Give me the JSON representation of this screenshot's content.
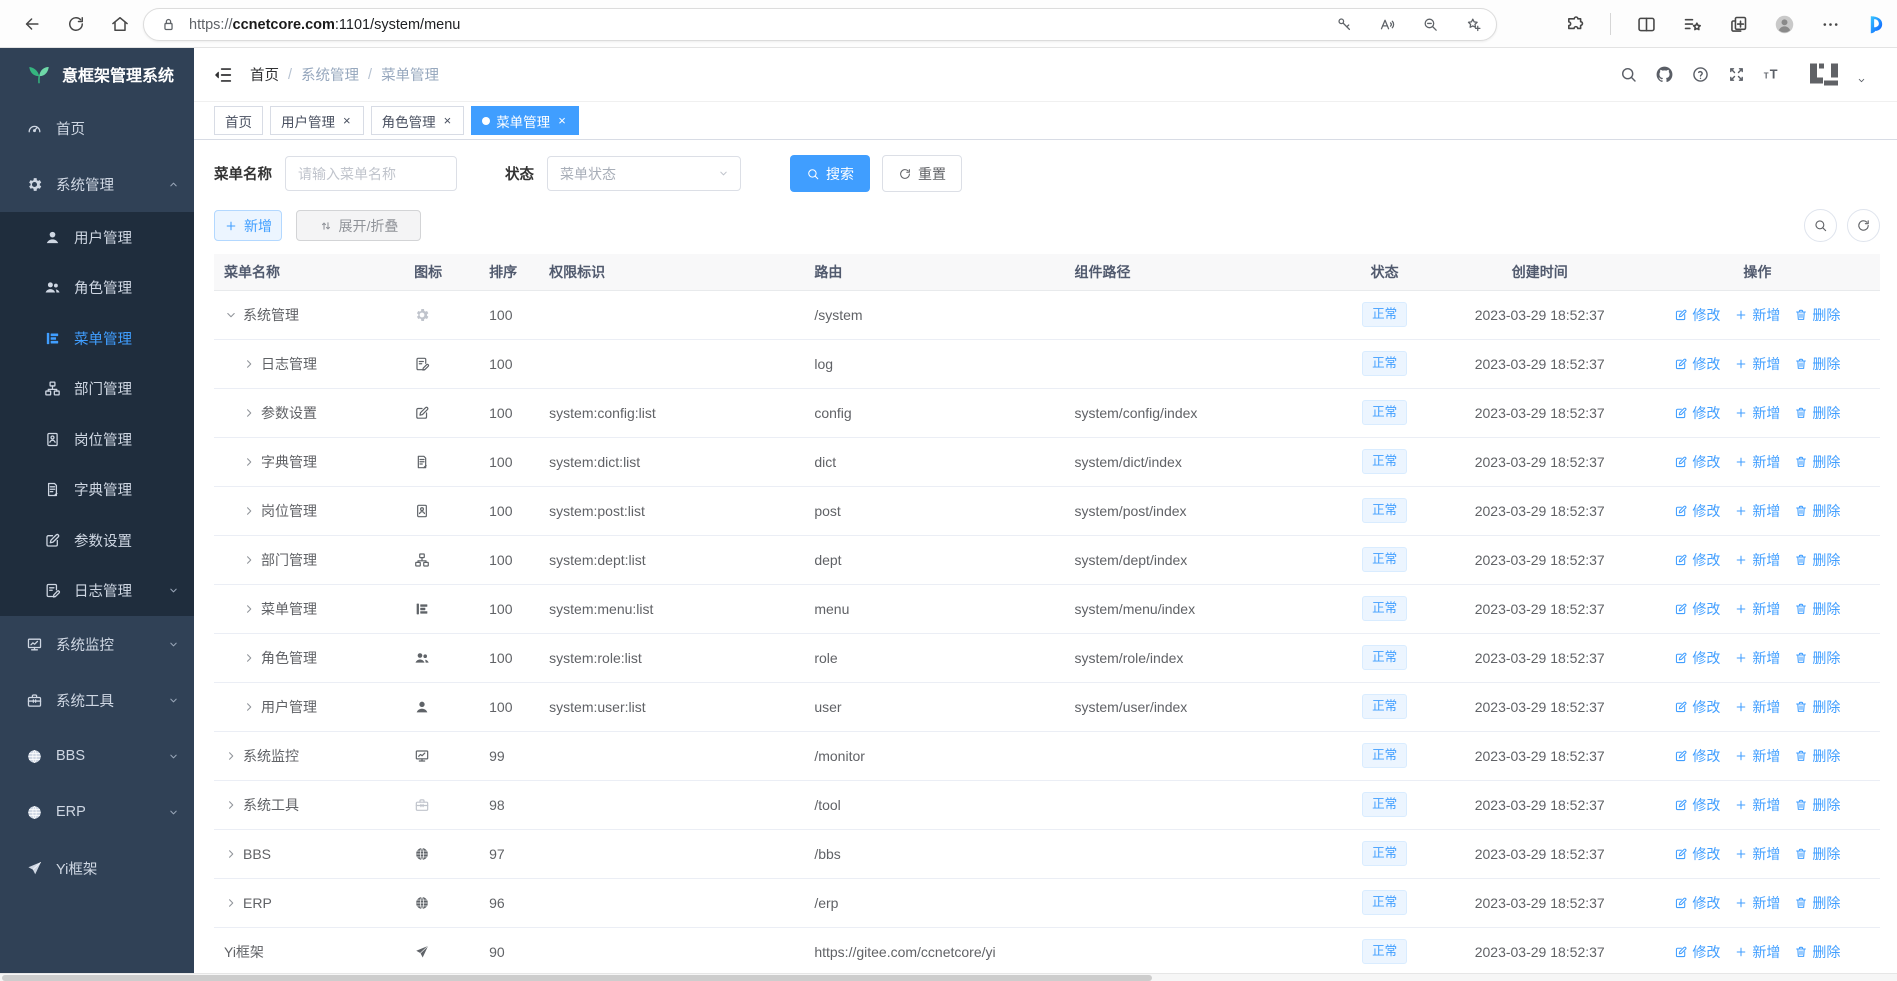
{
  "browser": {
    "url_prefix": "https://",
    "url_domain": "ccnetcore.com",
    "url_suffix": ":1101/system/menu"
  },
  "sidebar": {
    "logo_title": "意框架管理系统",
    "items": [
      {
        "label": "首页",
        "icon": "dashboard-icon",
        "level": 0,
        "chevron": ""
      },
      {
        "label": "系统管理",
        "icon": "gear-icon",
        "level": 0,
        "chevron": "up"
      },
      {
        "label": "用户管理",
        "icon": "user-icon",
        "level": 1,
        "chevron": ""
      },
      {
        "label": "角色管理",
        "icon": "peoples-icon",
        "level": 1,
        "chevron": ""
      },
      {
        "label": "菜单管理",
        "icon": "tree-table-icon",
        "level": 1,
        "chevron": "",
        "active": true
      },
      {
        "label": "部门管理",
        "icon": "tree-icon",
        "level": 1,
        "chevron": ""
      },
      {
        "label": "岗位管理",
        "icon": "badge-icon",
        "level": 1,
        "chevron": ""
      },
      {
        "label": "字典管理",
        "icon": "book-icon",
        "level": 1,
        "chevron": ""
      },
      {
        "label": "参数设置",
        "icon": "edit-icon",
        "level": 1,
        "chevron": ""
      },
      {
        "label": "日志管理",
        "icon": "log-icon",
        "level": 1,
        "chevron": "down"
      },
      {
        "label": "系统监控",
        "icon": "monitor-icon",
        "level": 0,
        "chevron": "down"
      },
      {
        "label": "系统工具",
        "icon": "toolbox-icon",
        "level": 0,
        "chevron": "down"
      },
      {
        "label": "BBS",
        "icon": "globe-icon",
        "level": 0,
        "chevron": "down"
      },
      {
        "label": "ERP",
        "icon": "globe-icon",
        "level": 0,
        "chevron": "down"
      },
      {
        "label": "Yi框架",
        "icon": "send-icon",
        "level": 0,
        "chevron": ""
      }
    ]
  },
  "breadcrumb": [
    "首页",
    "系统管理",
    "菜单管理"
  ],
  "tabs": [
    {
      "label": "首页",
      "closable": false,
      "active": false
    },
    {
      "label": "用户管理",
      "closable": true,
      "active": false
    },
    {
      "label": "角色管理",
      "closable": true,
      "active": false
    },
    {
      "label": "菜单管理",
      "closable": true,
      "active": true
    }
  ],
  "filters": {
    "name_label": "菜单名称",
    "name_placeholder": "请输入菜单名称",
    "status_label": "状态",
    "status_placeholder": "菜单状态",
    "search_label": "搜索",
    "reset_label": "重置"
  },
  "toolbar": {
    "add_label": "新增",
    "expand_label": "展开/折叠"
  },
  "table": {
    "columns": [
      "菜单名称",
      "图标",
      "排序",
      "权限标识",
      "路由",
      "组件路径",
      "状态",
      "创建时间",
      "操作"
    ],
    "ops": {
      "edit": "修改",
      "add": "新增",
      "delete": "删除"
    },
    "rows": [
      {
        "name": "系统管理",
        "icon": "gear-icon",
        "muted": true,
        "level": 0,
        "expand": "open",
        "sort": "100",
        "perms": "",
        "route": "/system",
        "component": "",
        "status": "正常",
        "created": "2023-03-29 18:52:37"
      },
      {
        "name": "日志管理",
        "icon": "log-icon",
        "muted": false,
        "level": 1,
        "expand": "closed",
        "sort": "100",
        "perms": "",
        "route": "log",
        "component": "",
        "status": "正常",
        "created": "2023-03-29 18:52:37"
      },
      {
        "name": "参数设置",
        "icon": "edit-icon",
        "muted": false,
        "level": 1,
        "expand": "closed",
        "sort": "100",
        "perms": "system:config:list",
        "route": "config",
        "component": "system/config/index",
        "status": "正常",
        "created": "2023-03-29 18:52:37"
      },
      {
        "name": "字典管理",
        "icon": "book-icon",
        "muted": false,
        "level": 1,
        "expand": "closed",
        "sort": "100",
        "perms": "system:dict:list",
        "route": "dict",
        "component": "system/dict/index",
        "status": "正常",
        "created": "2023-03-29 18:52:37"
      },
      {
        "name": "岗位管理",
        "icon": "badge-icon",
        "muted": false,
        "level": 1,
        "expand": "closed",
        "sort": "100",
        "perms": "system:post:list",
        "route": "post",
        "component": "system/post/index",
        "status": "正常",
        "created": "2023-03-29 18:52:37"
      },
      {
        "name": "部门管理",
        "icon": "tree-icon",
        "muted": false,
        "level": 1,
        "expand": "closed",
        "sort": "100",
        "perms": "system:dept:list",
        "route": "dept",
        "component": "system/dept/index",
        "status": "正常",
        "created": "2023-03-29 18:52:37"
      },
      {
        "name": "菜单管理",
        "icon": "tree-table-icon",
        "muted": false,
        "level": 1,
        "expand": "closed",
        "sort": "100",
        "perms": "system:menu:list",
        "route": "menu",
        "component": "system/menu/index",
        "status": "正常",
        "created": "2023-03-29 18:52:37"
      },
      {
        "name": "角色管理",
        "icon": "peoples-icon",
        "muted": false,
        "level": 1,
        "expand": "closed",
        "sort": "100",
        "perms": "system:role:list",
        "route": "role",
        "component": "system/role/index",
        "status": "正常",
        "created": "2023-03-29 18:52:37"
      },
      {
        "name": "用户管理",
        "icon": "user-icon",
        "muted": false,
        "level": 1,
        "expand": "closed",
        "sort": "100",
        "perms": "system:user:list",
        "route": "user",
        "component": "system/user/index",
        "status": "正常",
        "created": "2023-03-29 18:52:37"
      },
      {
        "name": "系统监控",
        "icon": "monitor-icon",
        "muted": false,
        "level": 0,
        "expand": "closed",
        "sort": "99",
        "perms": "",
        "route": "/monitor",
        "component": "",
        "status": "正常",
        "created": "2023-03-29 18:52:37"
      },
      {
        "name": "系统工具",
        "icon": "toolbox-icon",
        "muted": true,
        "level": 0,
        "expand": "closed",
        "sort": "98",
        "perms": "",
        "route": "/tool",
        "component": "",
        "status": "正常",
        "created": "2023-03-29 18:52:37"
      },
      {
        "name": "BBS",
        "icon": "globe-icon",
        "muted": false,
        "level": 0,
        "expand": "closed",
        "sort": "97",
        "perms": "",
        "route": "/bbs",
        "component": "",
        "status": "正常",
        "created": "2023-03-29 18:52:37"
      },
      {
        "name": "ERP",
        "icon": "globe-icon",
        "muted": false,
        "level": 0,
        "expand": "closed",
        "sort": "96",
        "perms": "",
        "route": "/erp",
        "component": "",
        "status": "正常",
        "created": "2023-03-29 18:52:37"
      },
      {
        "name": "Yi框架",
        "icon": "send-icon",
        "muted": false,
        "level": 0,
        "expand": "none",
        "sort": "90",
        "perms": "",
        "route": "https://gitee.com/ccnetcore/yi",
        "component": "",
        "status": "正常",
        "created": "2023-03-29 18:52:37"
      }
    ]
  },
  "colors": {
    "primary": "#409eff",
    "sidebar_bg": "#304156",
    "submenu_bg": "#1f2d3d",
    "tag_bg": "#ecf5ff"
  }
}
